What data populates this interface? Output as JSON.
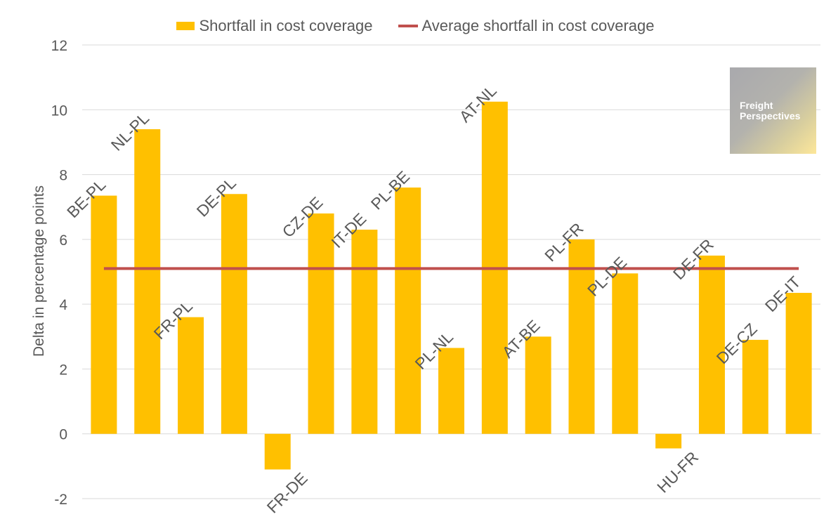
{
  "chart_data": {
    "type": "bar",
    "title": "",
    "xlabel": "",
    "ylabel": "Delta in percentage points",
    "ylim": [
      -2,
      12
    ],
    "yticks": [
      -2,
      0,
      2,
      4,
      6,
      8,
      10,
      12
    ],
    "grid": true,
    "legend_position": "top-center",
    "categories": [
      "BE-PL",
      "NL-PL",
      "FR-PL",
      "DE-PL",
      "FR-DE",
      "CZ-DE",
      "IT-DE",
      "PL-BE",
      "PL-NL",
      "AT-NL",
      "AT-BE",
      "PL-FR",
      "PL-DE",
      "HU-FR",
      "DE-FR",
      "DE-CZ",
      "DE-IT"
    ],
    "series": [
      {
        "name": "Shortfall in cost coverage",
        "kind": "bar",
        "color": "#FFC000",
        "values": [
          7.35,
          9.4,
          3.6,
          7.4,
          -1.1,
          6.8,
          6.3,
          7.6,
          2.65,
          10.25,
          3.0,
          6.0,
          4.95,
          -0.45,
          5.5,
          2.9,
          4.35
        ]
      },
      {
        "name": "Average shortfall in cost coverage",
        "kind": "line",
        "color": "#C0504D",
        "value": 5.1
      }
    ]
  },
  "logo": {
    "line1": "Freight",
    "line2": "Perspectives"
  },
  "colors": {
    "text": "#595959",
    "grid": "#d9d9d9"
  }
}
